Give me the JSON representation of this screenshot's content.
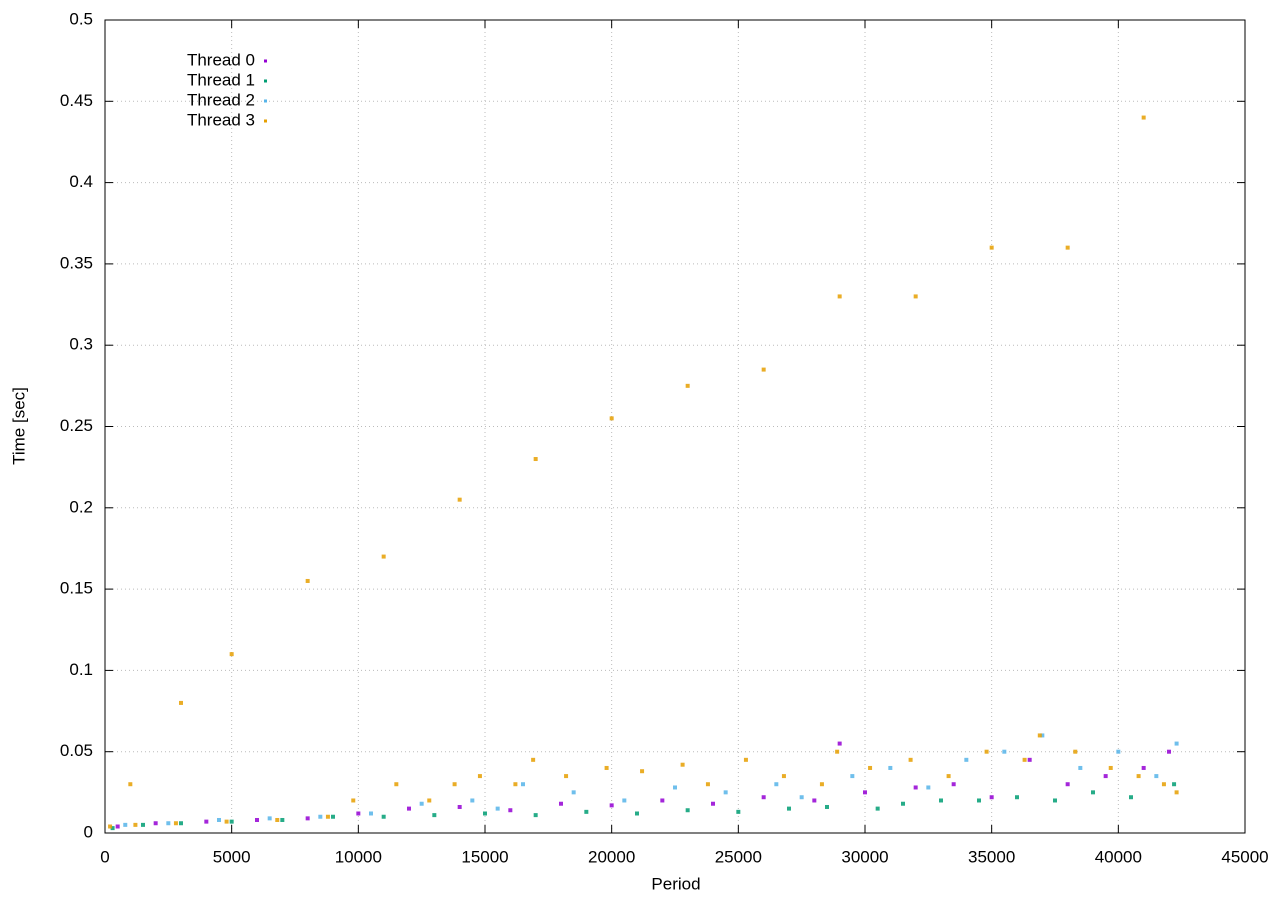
{
  "chart_data": {
    "type": "scatter",
    "xlabel": "Period",
    "ylabel": "Time [sec]",
    "xlim": [
      0,
      45000
    ],
    "ylim": [
      0,
      0.5
    ],
    "xticks": [
      0,
      5000,
      10000,
      15000,
      20000,
      25000,
      30000,
      35000,
      40000,
      45000
    ],
    "yticks": [
      0,
      0.05,
      0.1,
      0.15,
      0.2,
      0.25,
      0.3,
      0.35,
      0.4,
      0.45,
      0.5
    ],
    "grid": true,
    "legend": "top-left",
    "series": [
      {
        "name": "Thread 0",
        "color": "#9400d3",
        "x": [
          500,
          2000,
          4000,
          6000,
          8000,
          10000,
          12000,
          14000,
          16000,
          18000,
          20000,
          22000,
          24000,
          26000,
          28000,
          29000,
          30000,
          32000,
          33500,
          35000,
          36500,
          38000,
          39500,
          41000,
          42000
        ],
        "values": [
          0.004,
          0.006,
          0.007,
          0.008,
          0.009,
          0.012,
          0.015,
          0.016,
          0.014,
          0.018,
          0.017,
          0.02,
          0.018,
          0.022,
          0.02,
          0.055,
          0.025,
          0.028,
          0.03,
          0.022,
          0.045,
          0.03,
          0.035,
          0.04,
          0.05
        ]
      },
      {
        "name": "Thread 1",
        "color": "#009e73",
        "x": [
          300,
          1500,
          3000,
          5000,
          7000,
          9000,
          11000,
          13000,
          15000,
          17000,
          19000,
          21000,
          23000,
          25000,
          27000,
          28500,
          30500,
          31500,
          33000,
          34500,
          36000,
          37500,
          39000,
          40500,
          42200
        ],
        "values": [
          0.003,
          0.005,
          0.006,
          0.007,
          0.008,
          0.01,
          0.01,
          0.011,
          0.012,
          0.011,
          0.013,
          0.012,
          0.014,
          0.013,
          0.015,
          0.016,
          0.015,
          0.018,
          0.02,
          0.02,
          0.022,
          0.02,
          0.025,
          0.022,
          0.03
        ]
      },
      {
        "name": "Thread 2",
        "color": "#56b4e9",
        "x": [
          800,
          2500,
          4500,
          6500,
          8500,
          10500,
          12500,
          14500,
          15500,
          16500,
          18500,
          20500,
          22500,
          24500,
          26500,
          27500,
          29500,
          31000,
          32500,
          34000,
          35500,
          37000,
          38500,
          40000,
          41500,
          42300
        ],
        "values": [
          0.005,
          0.006,
          0.008,
          0.009,
          0.01,
          0.012,
          0.018,
          0.02,
          0.015,
          0.03,
          0.025,
          0.02,
          0.028,
          0.025,
          0.03,
          0.022,
          0.035,
          0.04,
          0.028,
          0.045,
          0.05,
          0.06,
          0.04,
          0.05,
          0.035,
          0.055
        ]
      },
      {
        "name": "Thread 3",
        "color": "#e69f00",
        "x": [
          200,
          1200,
          2800,
          4800,
          6800,
          8800,
          9800,
          11500,
          12800,
          13800,
          14800,
          16200,
          16900,
          18200,
          19800,
          21200,
          22800,
          23800,
          25300,
          26800,
          28300,
          28900,
          30200,
          31800,
          33300,
          34800,
          36300,
          36900,
          38300,
          39700,
          40800,
          41800,
          42300,
          1000,
          3000,
          5000,
          8000,
          11000,
          14000,
          17000,
          20000,
          23000,
          26000,
          29000,
          32000,
          35000,
          38000,
          41000
        ],
        "values": [
          0.004,
          0.005,
          0.006,
          0.007,
          0.008,
          0.01,
          0.02,
          0.03,
          0.02,
          0.03,
          0.035,
          0.03,
          0.045,
          0.035,
          0.04,
          0.038,
          0.042,
          0.03,
          0.045,
          0.035,
          0.03,
          0.05,
          0.04,
          0.045,
          0.035,
          0.05,
          0.045,
          0.06,
          0.05,
          0.04,
          0.035,
          0.03,
          0.025,
          0.03,
          0.08,
          0.11,
          0.155,
          0.17,
          0.205,
          0.23,
          0.255,
          0.275,
          0.285,
          0.33,
          0.33,
          0.36,
          0.36,
          0.44
        ]
      }
    ]
  }
}
